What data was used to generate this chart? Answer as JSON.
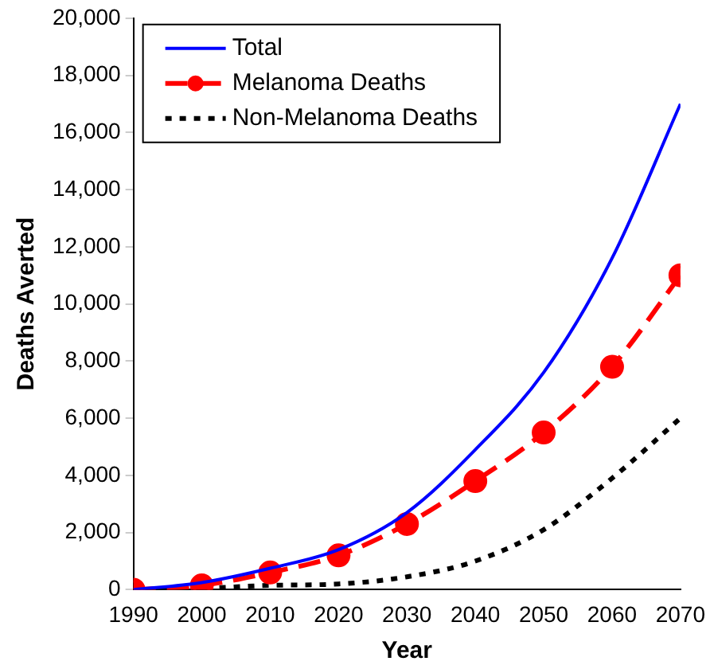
{
  "chart_data": {
    "type": "line",
    "xlabel": "Year",
    "ylabel": "Deaths Averted",
    "x": [
      1990,
      2000,
      2010,
      2020,
      2030,
      2040,
      2050,
      2060,
      2070
    ],
    "xlim": [
      1990,
      2070
    ],
    "xticks": [
      1990,
      2000,
      2010,
      2020,
      2030,
      2040,
      2050,
      2060,
      2070
    ],
    "ylim": [
      0,
      20000
    ],
    "yticks": [
      0,
      {
        "value": 2000,
        "label": "2,000"
      },
      {
        "value": 4000,
        "label": "4,000"
      },
      {
        "value": 6000,
        "label": "6,000"
      },
      {
        "value": 8000,
        "label": "8,000"
      },
      {
        "value": 10000,
        "label": "10,000"
      },
      {
        "value": 12000,
        "label": "12,000"
      },
      {
        "value": 14000,
        "label": "14,000"
      },
      {
        "value": 16000,
        "label": "16,000"
      },
      {
        "value": 18000,
        "label": "18,000"
      },
      {
        "value": 20000,
        "label": "20,000"
      }
    ],
    "grid": false,
    "legend": "top left",
    "series": [
      {
        "name": "Total",
        "color": "#0000ff",
        "line_style": "solid",
        "marker": "none",
        "values": [
          0,
          250,
          750,
          1400,
          2700,
          4900,
          7600,
          11600,
          17000
        ]
      },
      {
        "name": "Melanoma Deaths",
        "color": "#ff0000",
        "line_style": "dashed",
        "marker": "circle",
        "values": [
          0,
          150,
          600,
          1200,
          2300,
          3800,
          5500,
          7800,
          11000
        ]
      },
      {
        "name": "Non-Melanoma Deaths",
        "color": "#000000",
        "line_style": "dotted",
        "marker": "none",
        "values": [
          0,
          50,
          150,
          200,
          450,
          1000,
          2100,
          3900,
          6000
        ]
      }
    ]
  }
}
